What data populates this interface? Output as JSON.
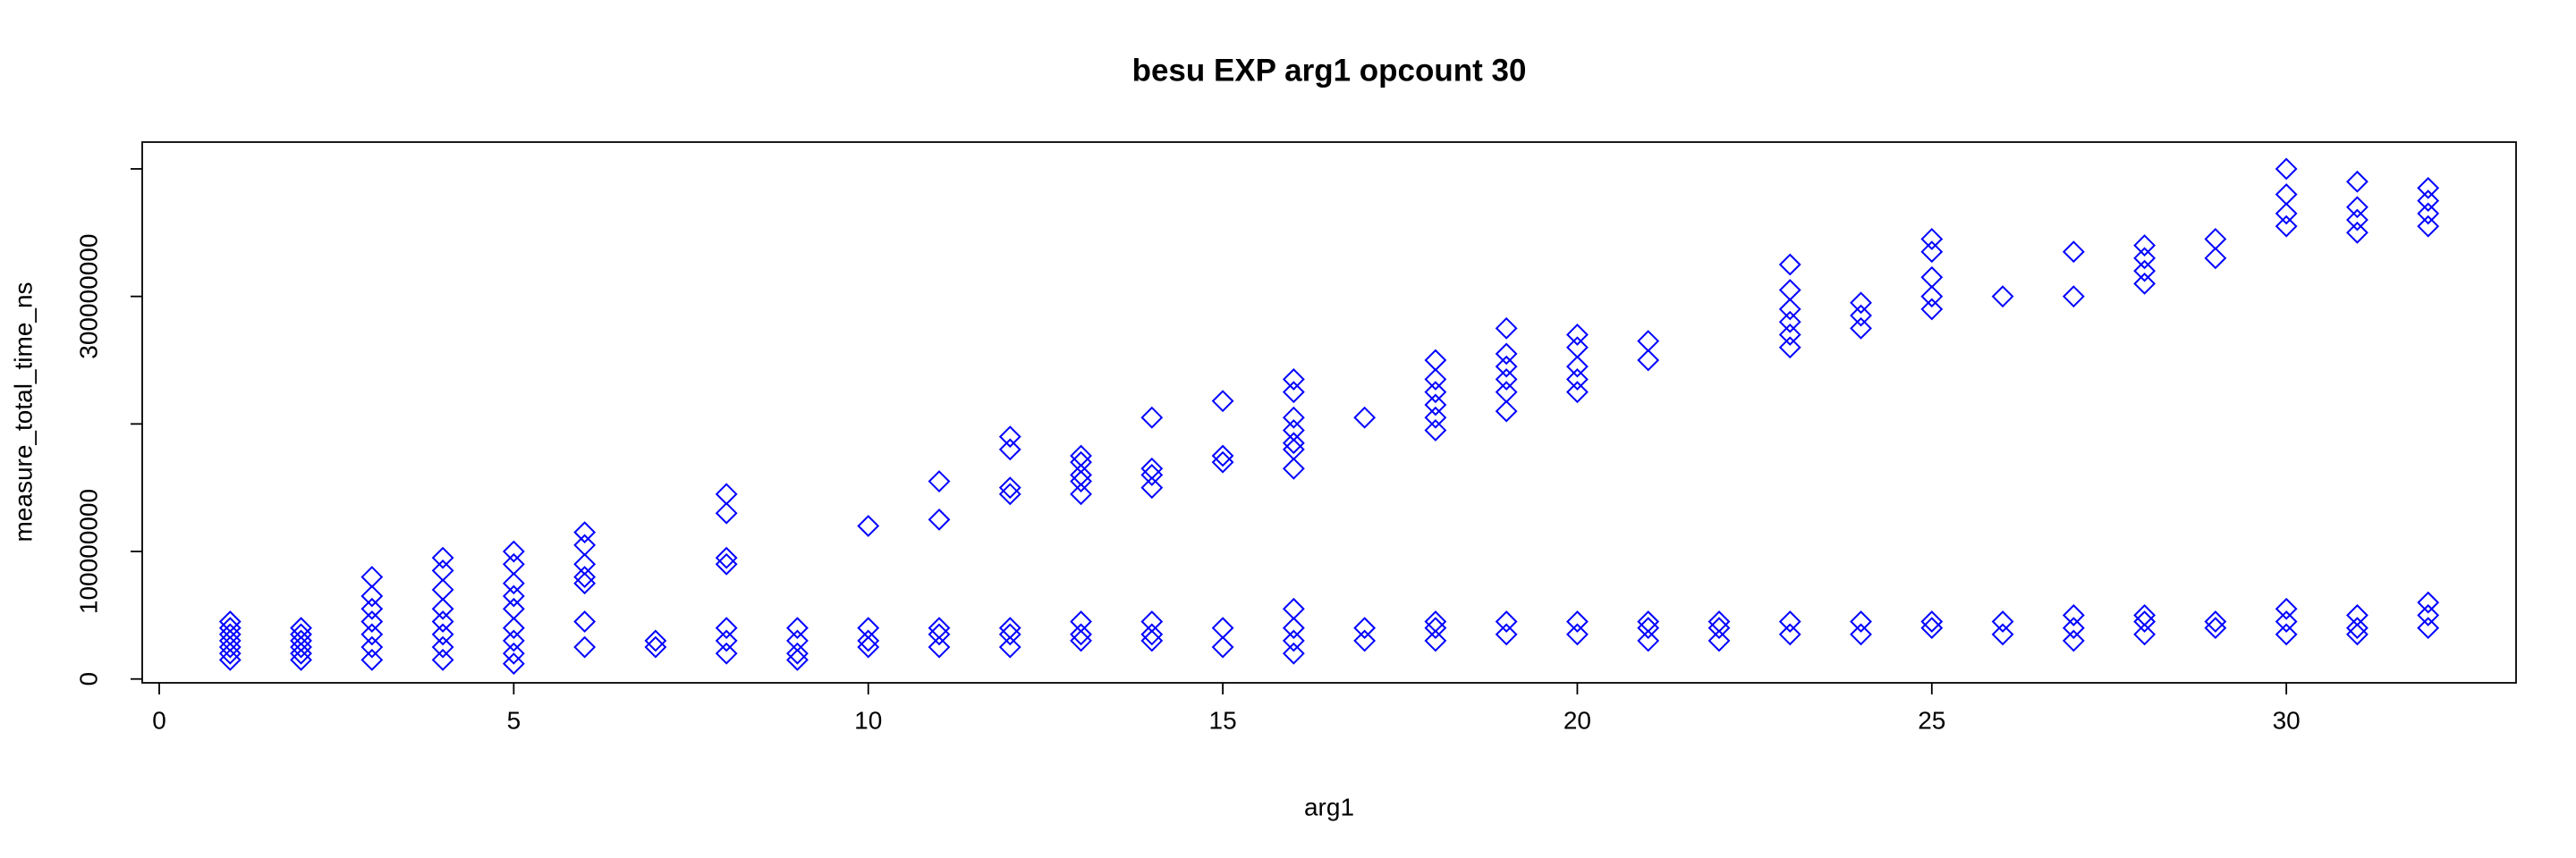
{
  "chart_data": {
    "type": "scatter",
    "title": "besu EXP arg1 opcount 30",
    "x_label": "arg1",
    "y_label": "measure_total_time_ns",
    "color": "#0000ff",
    "marker": "diamond",
    "xlim": [
      -0.24,
      33.24
    ],
    "ylim": [
      -3000000,
      421000000
    ],
    "xticks": [
      0,
      5,
      10,
      15,
      20,
      25,
      30
    ],
    "yticks": [
      0,
      100000000,
      300000000
    ],
    "ytick_marks": [
      0,
      100000000,
      200000000,
      300000000,
      400000000
    ],
    "x": [
      1,
      1,
      1,
      1,
      1,
      1,
      1,
      2,
      2,
      2,
      2,
      2,
      2,
      3,
      3,
      3,
      3,
      3,
      3,
      3,
      4,
      4,
      4,
      4,
      4,
      4,
      4,
      4,
      5,
      5,
      5,
      5,
      5,
      5,
      5,
      5,
      5,
      6,
      6,
      6,
      6,
      6,
      6,
      6,
      7,
      7,
      8,
      8,
      8,
      8,
      8,
      8,
      8,
      9,
      9,
      9,
      9,
      10,
      10,
      10,
      10,
      11,
      11,
      11,
      11,
      11,
      12,
      12,
      12,
      12,
      12,
      12,
      12,
      13,
      13,
      13,
      13,
      13,
      13,
      13,
      13,
      14,
      14,
      14,
      14,
      14,
      14,
      14,
      15,
      15,
      15,
      15,
      15,
      16,
      16,
      16,
      16,
      16,
      16,
      16,
      16,
      16,
      16,
      16,
      17,
      17,
      17,
      18,
      18,
      18,
      18,
      18,
      18,
      18,
      18,
      18,
      19,
      19,
      19,
      19,
      19,
      19,
      19,
      19,
      20,
      20,
      20,
      20,
      20,
      20,
      20,
      21,
      21,
      21,
      21,
      21,
      22,
      22,
      22,
      23,
      23,
      23,
      23,
      23,
      23,
      23,
      23,
      24,
      24,
      24,
      24,
      24,
      25,
      25,
      25,
      25,
      25,
      25,
      25,
      26,
      26,
      26,
      27,
      27,
      27,
      27,
      27,
      28,
      28,
      28,
      28,
      28,
      28,
      28,
      29,
      29,
      29,
      29,
      30,
      30,
      30,
      30,
      30,
      30,
      30,
      31,
      31,
      31,
      31,
      31,
      31,
      31,
      32,
      32,
      32,
      32,
      32,
      32,
      32
    ],
    "y": [
      15000000.0,
      20000000.0,
      25000000.0,
      30000000.0,
      35000000.0,
      40000000.0,
      45000000.0,
      15000000.0,
      20000000.0,
      25000000.0,
      30000000.0,
      35000000.0,
      40000000.0,
      15000000.0,
      25000000.0,
      35000000.0,
      45000000.0,
      55000000.0,
      65000000.0,
      80000000.0,
      15000000.0,
      25000000.0,
      35000000.0,
      45000000.0,
      55000000.0,
      70000000.0,
      85000000.0,
      95000000.0,
      12000000.0,
      20000000.0,
      30000000.0,
      40000000.0,
      55000000.0,
      65000000.0,
      75000000.0,
      90000000.0,
      100000000.0,
      25000000.0,
      45000000.0,
      75000000.0,
      80000000.0,
      90000000.0,
      105000000.0,
      115000000.0,
      25000000.0,
      30000000.0,
      20000000.0,
      30000000.0,
      40000000.0,
      90000000.0,
      95000000.0,
      130000000.0,
      145000000.0,
      15000000.0,
      20000000.0,
      30000000.0,
      40000000.0,
      25000000.0,
      30000000.0,
      40000000.0,
      120000000.0,
      25000000.0,
      35000000.0,
      40000000.0,
      125000000.0,
      155000000.0,
      25000000.0,
      35000000.0,
      40000000.0,
      145000000.0,
      150000000.0,
      180000000.0,
      190000000.0,
      30000000.0,
      35000000.0,
      45000000.0,
      145000000.0,
      155000000.0,
      160000000.0,
      170000000.0,
      175000000.0,
      30000000.0,
      35000000.0,
      45000000.0,
      150000000.0,
      160000000.0,
      165000000.0,
      205000000.0,
      25000000.0,
      40000000.0,
      170000000.0,
      175000000.0,
      218000000.0,
      20000000.0,
      30000000.0,
      40000000.0,
      55000000.0,
      165000000.0,
      180000000.0,
      185000000.0,
      195000000.0,
      205000000.0,
      225000000.0,
      235000000.0,
      30000000.0,
      40000000.0,
      205000000.0,
      30000000.0,
      40000000.0,
      45000000.0,
      195000000.0,
      205000000.0,
      215000000.0,
      225000000.0,
      235000000.0,
      250000000.0,
      35000000.0,
      45000000.0,
      210000000.0,
      225000000.0,
      235000000.0,
      245000000.0,
      255000000.0,
      275000000.0,
      35000000.0,
      45000000.0,
      225000000.0,
      235000000.0,
      245000000.0,
      260000000.0,
      270000000.0,
      30000000.0,
      40000000.0,
      45000000.0,
      250000000.0,
      265000000.0,
      30000000.0,
      40000000.0,
      45000000.0,
      35000000.0,
      45000000.0,
      260000000.0,
      270000000.0,
      280000000.0,
      290000000.0,
      305000000.0,
      325000000.0,
      35000000.0,
      45000000.0,
      275000000.0,
      285000000.0,
      295000000.0,
      40000000.0,
      45000000.0,
      290000000.0,
      300000000.0,
      315000000.0,
      335000000.0,
      345000000.0,
      35000000.0,
      45000000.0,
      300000000.0,
      30000000.0,
      40000000.0,
      50000000.0,
      300000000.0,
      335000000.0,
      35000000.0,
      45000000.0,
      50000000.0,
      310000000.0,
      320000000.0,
      330000000.0,
      340000000.0,
      40000000.0,
      45000000.0,
      330000000.0,
      345000000.0,
      35000000.0,
      45000000.0,
      55000000.0,
      355000000.0,
      365000000.0,
      380000000.0,
      400000000.0,
      35000000.0,
      40000000.0,
      50000000.0,
      350000000.0,
      360000000.0,
      370000000.0,
      390000000.0,
      40000000.0,
      50000000.0,
      60000000.0,
      355000000.0,
      365000000.0,
      375000000.0,
      385000000.0
    ]
  }
}
